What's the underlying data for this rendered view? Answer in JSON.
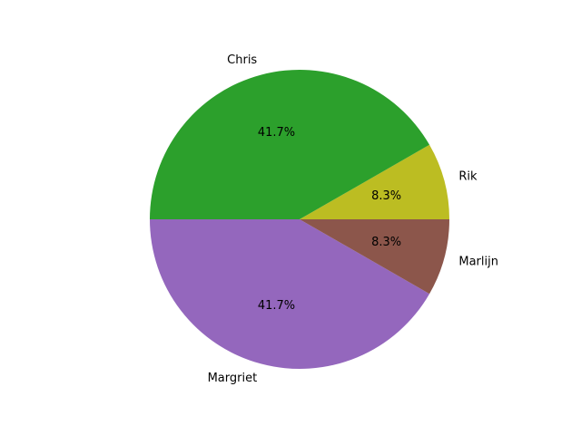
{
  "chart_data": {
    "type": "pie",
    "title": "",
    "categories": [
      "Rik",
      "Chris",
      "Margriet",
      "Marlijn"
    ],
    "values": [
      8.3,
      41.7,
      41.7,
      8.3
    ],
    "percent_labels": [
      "8.3%",
      "41.7%",
      "41.7%",
      "8.3%"
    ],
    "colors": [
      "#bcbd22",
      "#2ca02c",
      "#9467bd",
      "#8c564b"
    ],
    "start_angle_deg": 0,
    "direction": "counterclockwise",
    "legend": "none"
  }
}
